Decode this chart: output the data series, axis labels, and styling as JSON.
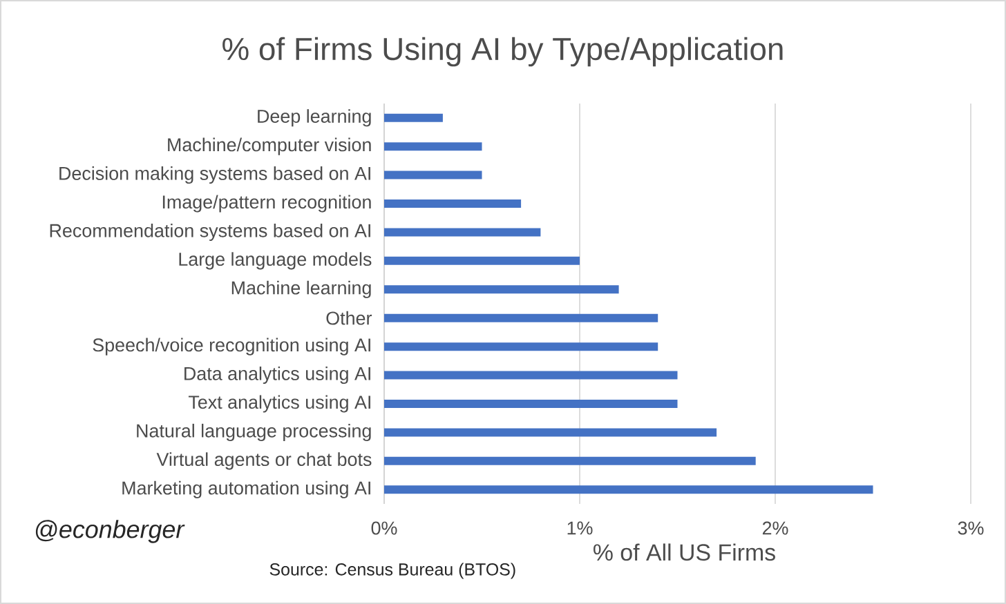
{
  "chart_data": {
    "type": "bar",
    "orientation": "horizontal",
    "title": "% of Firms Using AI by Type/Application",
    "categories": [
      "Deep learning",
      "Machine/computer vision",
      "Decision making systems based on AI",
      "Image/pattern recognition",
      "Recommendation systems based on AI",
      "Large language models",
      "Machine learning",
      "Other",
      "Speech/voice recognition using AI",
      "Data analytics using AI",
      "Text analytics using AI",
      "Natural language processing",
      "Virtual agents or chat bots",
      "Marketing automation using AI"
    ],
    "values": [
      0.3,
      0.5,
      0.5,
      0.7,
      0.8,
      1.0,
      1.2,
      1.4,
      1.4,
      1.5,
      1.5,
      1.7,
      1.9,
      2.5
    ],
    "color": "#4472c4",
    "xlim": [
      0,
      3
    ],
    "xticks": [
      {
        "value": 0,
        "label": "0%"
      },
      {
        "value": 1,
        "label": "1%"
      },
      {
        "value": 2,
        "label": "2%"
      },
      {
        "value": 3,
        "label": "3%"
      }
    ],
    "xlabel": "% of All US Firms",
    "grid": "x",
    "annotations": [
      "@econberger",
      "Source: Census Bureau (BTOS)"
    ]
  }
}
